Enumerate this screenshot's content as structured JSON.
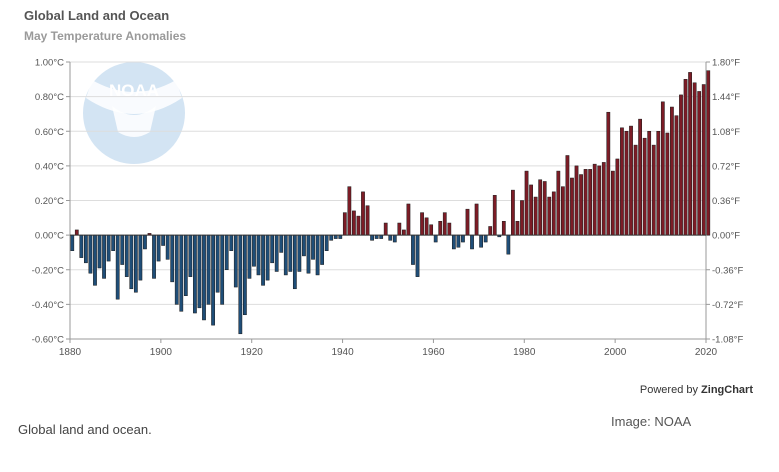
{
  "chart_data": {
    "type": "bar",
    "title": "Global Land and Ocean",
    "subtitle": "May Temperature Anomalies",
    "xlabel": "",
    "ylabel": "",
    "x_range": [
      1880,
      2020
    ],
    "ylim": [
      -0.6,
      1.0
    ],
    "y_ticks": [
      "1.00°C",
      "0.80°C",
      "0.60°C",
      "0.40°C",
      "0.20°C",
      "0.00°C",
      "-0.20°C",
      "-0.40°C",
      "-0.60°C"
    ],
    "y2_ticks": [
      "1.80°F",
      "1.44°F",
      "1.08°F",
      "0.72°F",
      "0.36°F",
      "0.00°F",
      "-0.36°F",
      "-0.72°F",
      "-1.08°F"
    ],
    "x_ticks": [
      "1880",
      "1900",
      "1920",
      "1940",
      "1960",
      "1980",
      "2000",
      "2020"
    ],
    "grid": true,
    "colors": {
      "positive": "#7c1c26",
      "negative": "#1f4e78"
    },
    "series": [
      {
        "x": [
          1880,
          1881,
          1882,
          1883,
          1884,
          1885,
          1886,
          1887,
          1888,
          1889,
          1890,
          1891,
          1892,
          1893,
          1894,
          1895,
          1896,
          1897,
          1898,
          1899,
          1900,
          1901,
          1902,
          1903,
          1904,
          1905,
          1906,
          1907,
          1908,
          1909,
          1910,
          1911,
          1912,
          1913,
          1914,
          1915,
          1916,
          1917,
          1918,
          1919,
          1920,
          1921,
          1922,
          1923,
          1924,
          1925,
          1926,
          1927,
          1928,
          1929,
          1930,
          1931,
          1932,
          1933,
          1934,
          1935,
          1936,
          1937,
          1938,
          1939,
          1940,
          1941,
          1942,
          1943,
          1944,
          1945,
          1946,
          1947,
          1948,
          1949,
          1950,
          1951,
          1952,
          1953,
          1954,
          1955,
          1956,
          1957,
          1958,
          1959,
          1960,
          1961,
          1962,
          1963,
          1964,
          1965,
          1966,
          1967,
          1968,
          1969,
          1970,
          1971,
          1972,
          1973,
          1974,
          1975,
          1976,
          1977,
          1978,
          1979,
          1980,
          1981,
          1982,
          1983,
          1984,
          1985,
          1986,
          1987,
          1988,
          1989,
          1990,
          1991,
          1992,
          1993,
          1994,
          1995,
          1996,
          1997,
          1998,
          1999,
          2000,
          2001,
          2002,
          2003,
          2004,
          2005,
          2006,
          2007,
          2008,
          2009,
          2010,
          2011,
          2012,
          2013,
          2014,
          2015,
          2016,
          2017,
          2018,
          2019,
          2020
        ],
        "values": [
          -0.09,
          0.03,
          -0.13,
          -0.16,
          -0.22,
          -0.29,
          -0.19,
          -0.25,
          -0.15,
          -0.09,
          -0.37,
          -0.17,
          -0.24,
          -0.31,
          -0.33,
          -0.26,
          -0.08,
          0.01,
          -0.25,
          -0.15,
          -0.06,
          -0.14,
          -0.27,
          -0.4,
          -0.44,
          -0.35,
          -0.24,
          -0.45,
          -0.42,
          -0.49,
          -0.4,
          -0.52,
          -0.33,
          -0.4,
          -0.2,
          -0.09,
          -0.3,
          -0.57,
          -0.46,
          -0.25,
          -0.18,
          -0.23,
          -0.29,
          -0.26,
          -0.16,
          -0.21,
          -0.1,
          -0.23,
          -0.21,
          -0.31,
          -0.21,
          -0.12,
          -0.22,
          -0.14,
          -0.23,
          -0.17,
          -0.09,
          -0.03,
          -0.02,
          -0.02,
          0.13,
          0.28,
          0.14,
          0.11,
          0.25,
          0.17,
          -0.03,
          -0.02,
          -0.02,
          0.07,
          -0.03,
          -0.04,
          0.07,
          0.03,
          0.18,
          -0.17,
          -0.24,
          0.13,
          0.1,
          0.06,
          -0.04,
          0.08,
          0.13,
          0.07,
          -0.08,
          -0.07,
          -0.04,
          0.15,
          -0.08,
          0.18,
          -0.07,
          -0.04,
          0.05,
          0.23,
          -0.01,
          0.08,
          -0.11,
          0.26,
          0.08,
          0.2,
          0.37,
          0.29,
          0.22,
          0.32,
          0.31,
          0.22,
          0.25,
          0.37,
          0.28,
          0.46,
          0.33,
          0.4,
          0.35,
          0.38,
          0.38,
          0.41,
          0.4,
          0.42,
          0.71,
          0.37,
          0.44,
          0.62,
          0.6,
          0.63,
          0.52,
          0.67,
          0.56,
          0.6,
          0.52,
          0.6,
          0.77,
          0.59,
          0.74,
          0.69,
          0.81,
          0.9,
          0.94,
          0.88,
          0.83,
          0.87,
          0.95
        ]
      }
    ]
  },
  "powered_by": {
    "prefix": "Powered by",
    "brand": "ZingChart"
  },
  "caption": "Global land and ocean.",
  "credit": "Image: NOAA"
}
